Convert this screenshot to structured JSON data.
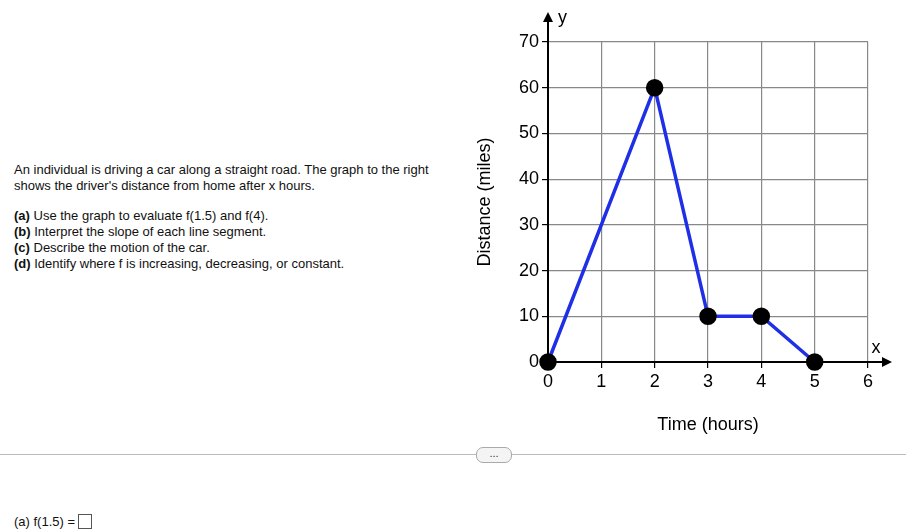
{
  "chart_data": {
    "type": "line",
    "x_label": "Time (hours)",
    "y_label": "Distance (miles)",
    "axis_letters": {
      "x": "x",
      "y": "y"
    },
    "x": [
      0,
      2,
      3,
      4,
      5
    ],
    "values": [
      0,
      60,
      10,
      10,
      0
    ],
    "color": "#1f2fe6",
    "marker": "circle",
    "line_style": "solid",
    "xlim": [
      0,
      6
    ],
    "xticks": [
      0,
      1,
      2,
      3,
      4,
      5,
      6
    ],
    "ylim": [
      0,
      70
    ],
    "yticks": [
      0,
      10,
      20,
      30,
      40,
      50,
      60,
      70
    ],
    "grid": true
  },
  "problem": {
    "intro": "An individual is driving a car along a straight road. The graph to the right shows the driver's distance from home after x hours.",
    "parts": [
      {
        "label": "(a)",
        "text": "Use the graph to evaluate f(1.5) and f(4)."
      },
      {
        "label": "(b)",
        "text": "Interpret the slope of each line segment."
      },
      {
        "label": "(c)",
        "text": "Describe the motion of the car."
      },
      {
        "label": "(d)",
        "text": "Identify where f is increasing, decreasing, or constant."
      }
    ],
    "more_button": "...",
    "answer_prompt": "(a) f(1.5) ="
  }
}
